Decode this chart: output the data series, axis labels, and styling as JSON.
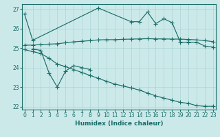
{
  "xlabel": "Humidex (Indice chaleur)",
  "xlim_min": -0.3,
  "xlim_max": 23.3,
  "ylim_min": 21.85,
  "ylim_max": 27.25,
  "yticks": [
    22,
    23,
    24,
    25,
    26,
    27
  ],
  "xticks": [
    0,
    1,
    2,
    3,
    4,
    5,
    6,
    7,
    8,
    9,
    10,
    11,
    12,
    13,
    14,
    15,
    16,
    17,
    18,
    19,
    20,
    21,
    22,
    23
  ],
  "bg_color": "#cce9e9",
  "grid_color": "#aad4d4",
  "line_color": "#1a6e6a",
  "line1_x": [
    0,
    1,
    9,
    13,
    14,
    15,
    16,
    17,
    18,
    19,
    20,
    21,
    22,
    23
  ],
  "line1_y": [
    26.75,
    25.4,
    27.05,
    26.35,
    26.35,
    26.85,
    26.25,
    26.5,
    26.3,
    25.3,
    25.3,
    25.3,
    25.1,
    25.05
  ],
  "line2_x": [
    0,
    1,
    2,
    3,
    4,
    5,
    6,
    7,
    8,
    9,
    10,
    11,
    12,
    13,
    14,
    15,
    16,
    17,
    18,
    19,
    20,
    21,
    22,
    23
  ],
  "line2_y": [
    25.15,
    25.15,
    25.18,
    25.2,
    25.22,
    25.27,
    25.32,
    25.35,
    25.38,
    25.42,
    25.43,
    25.43,
    25.45,
    25.46,
    25.47,
    25.48,
    25.47,
    25.47,
    25.46,
    25.46,
    25.44,
    25.42,
    25.38,
    25.33
  ],
  "line3_x": [
    1,
    2,
    3,
    4,
    5,
    6,
    7,
    8
  ],
  "line3_y": [
    24.95,
    24.88,
    23.72,
    23.0,
    23.82,
    24.1,
    24.0,
    23.9
  ],
  "line4_x": [
    0,
    1,
    2,
    3,
    4,
    5,
    6,
    7,
    8,
    9,
    10,
    11,
    12,
    13,
    14,
    15,
    16,
    17,
    18,
    19,
    20,
    21,
    22,
    23
  ],
  "line4_y": [
    24.92,
    24.82,
    24.72,
    24.48,
    24.18,
    24.05,
    23.9,
    23.75,
    23.6,
    23.45,
    23.3,
    23.16,
    23.06,
    22.96,
    22.85,
    22.7,
    22.55,
    22.44,
    22.33,
    22.22,
    22.17,
    22.05,
    22.02,
    22.02
  ]
}
